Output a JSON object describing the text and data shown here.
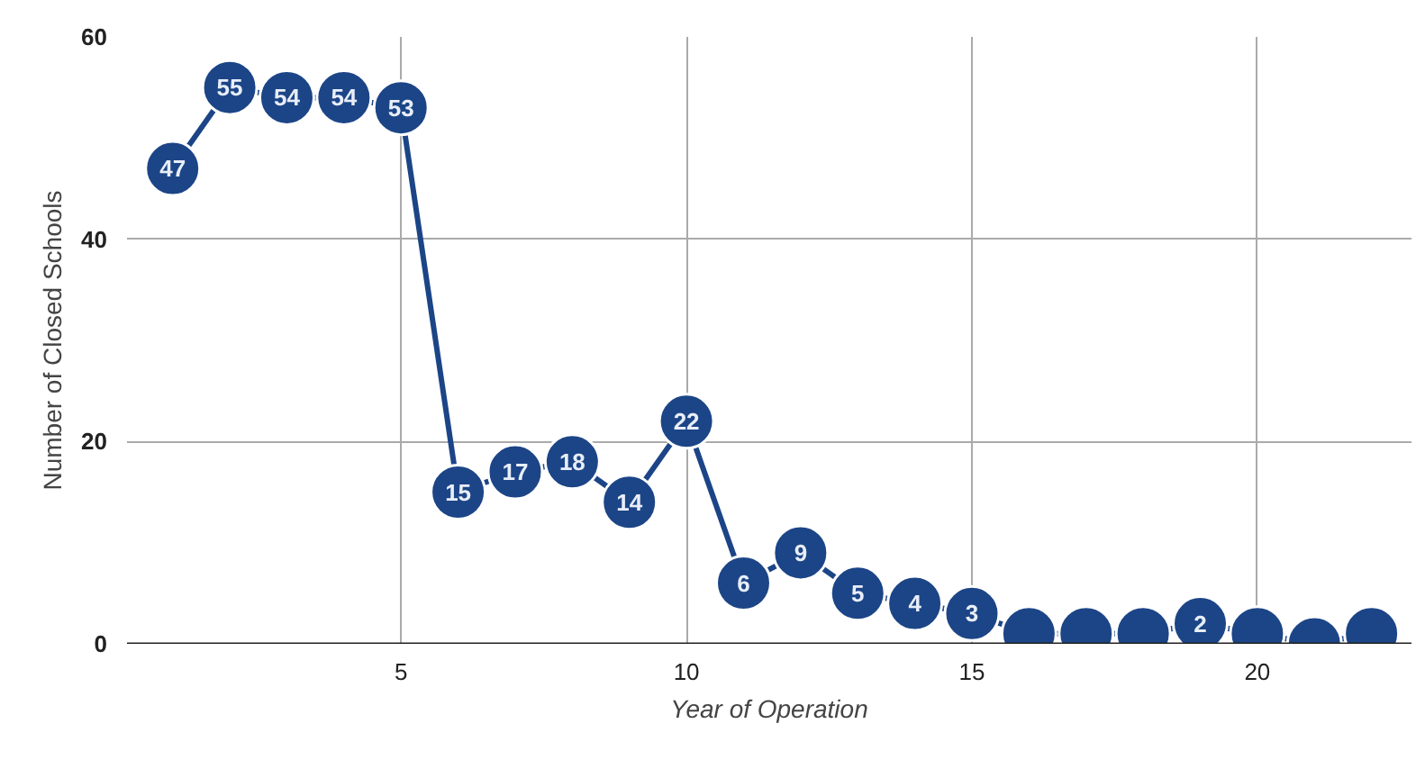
{
  "chart_data": {
    "type": "line",
    "xlabel": "Year of Operation",
    "ylabel": "Number of Closed Schools",
    "x": [
      1,
      2,
      3,
      4,
      5,
      6,
      7,
      8,
      9,
      10,
      11,
      12,
      13,
      14,
      15,
      16,
      17,
      18,
      19,
      20,
      21,
      22
    ],
    "series": [
      {
        "color": "#1c4587",
        "values": [
          47,
          55,
          54,
          54,
          53,
          15,
          17,
          18,
          14,
          22,
          6,
          9,
          5,
          4,
          3,
          1,
          1,
          1,
          2,
          1,
          0,
          1
        ],
        "value_labels": [
          "47",
          "55",
          "54",
          "54",
          "53",
          "15",
          "17",
          "18",
          "14",
          "22",
          "6",
          "9",
          "5",
          "4",
          "3",
          null,
          null,
          null,
          "2",
          null,
          null,
          null
        ]
      }
    ],
    "xlim": [
      0.2,
      22.7
    ],
    "ylim": [
      0,
      60
    ],
    "xticks": [
      5,
      10,
      15,
      20
    ],
    "yticks": [
      0,
      20,
      40,
      60
    ],
    "grid": true,
    "marker": "circle",
    "line_style": "solid"
  }
}
